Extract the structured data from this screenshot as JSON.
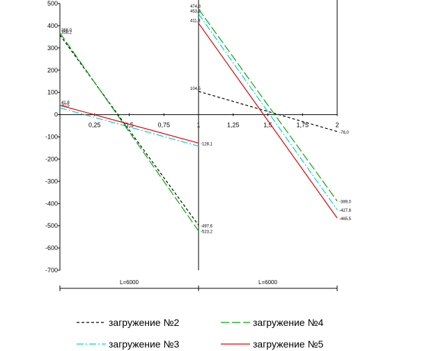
{
  "chart_data": {
    "type": "line",
    "title": "",
    "xlabel": "",
    "ylabel": "",
    "xlim": [
      0,
      2
    ],
    "ylim": [
      -700,
      500
    ],
    "y_ticks": [
      500,
      400,
      300,
      200,
      100,
      0,
      -100,
      -200,
      -300,
      -400,
      -500,
      -600,
      -700
    ],
    "y_tick_labels": [
      "500",
      "400",
      "300",
      "200",
      "100",
      "0",
      "-100",
      "-200",
      "-300",
      "-400",
      "-500",
      "-600",
      "-700"
    ],
    "x_ticks": [
      0.25,
      0.5,
      0.75,
      1,
      1.25,
      1.5,
      1.75,
      2
    ],
    "x_tick_labels": [
      "0,25",
      "0,5",
      "0,75",
      "1",
      "1,25",
      "1,5",
      "1,75",
      "2"
    ],
    "grid": false,
    "legend_position": "bottom",
    "series": [
      {
        "name": "загружение №2",
        "color": "#000000",
        "dash": "dashed",
        "segments": [
          {
            "x": [
              0,
              1
            ],
            "y": [
              358.2,
              -497.6
            ],
            "labels": [
              "358,2",
              "-497,6"
            ]
          },
          {
            "x": [
              1,
              2
            ],
            "y": [
              104.5,
              -76.0
            ],
            "labels": [
              "104,5",
              "-76,0"
            ]
          }
        ]
      },
      {
        "name": "загружение №3",
        "color": "#00ccdd",
        "dash": "dashdot",
        "segments": [
          {
            "x": [
              0,
              1
            ],
            "y": [
              30.5,
              -141.8
            ],
            "labels": [
              "30,5",
              ""
            ]
          },
          {
            "x": [
              1,
              2
            ],
            "y": [
              453.2,
              -427.8
            ],
            "labels": [
              "453,2",
              "-427,8"
            ]
          }
        ]
      },
      {
        "name": "загружение №4",
        "color": "#00aa00",
        "dash": "longdash",
        "segments": [
          {
            "x": [
              0,
              1
            ],
            "y": [
              368.0,
              -523.2
            ],
            "labels": [
              "368,0",
              "-523,2"
            ]
          },
          {
            "x": [
              1,
              2
            ],
            "y": [
              474.8,
              -389.0
            ],
            "labels": [
              "474,8",
              "-389,0"
            ]
          }
        ]
      },
      {
        "name": "загружение №5",
        "color": "#dd0000",
        "dash": "solid",
        "segments": [
          {
            "x": [
              0,
              1
            ],
            "y": [
              41.8,
              -128.1
            ],
            "labels": [
              "41,8",
              "-128,1"
            ]
          },
          {
            "x": [
              1,
              2
            ],
            "y": [
              411.3,
              -465.5
            ],
            "labels": [
              "411,3",
              "-465,5"
            ]
          }
        ]
      }
    ],
    "spans": [
      {
        "x": [
          0,
          1
        ],
        "label": "L=6000"
      },
      {
        "x": [
          1,
          2
        ],
        "label": "L=6000"
      }
    ]
  }
}
